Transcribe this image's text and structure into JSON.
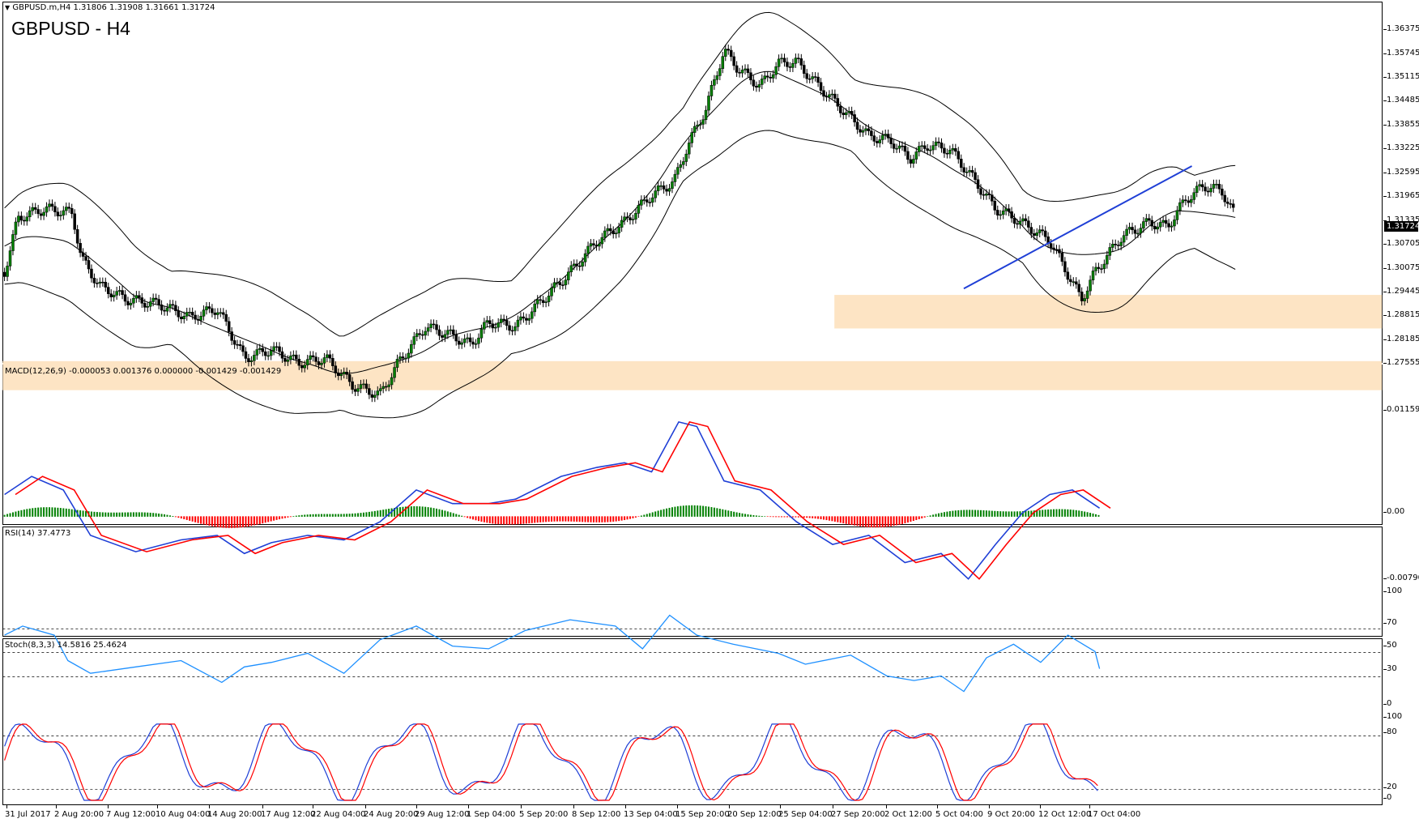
{
  "chart_header": {
    "symbol_info": "GBPUSD.m,H4  1.31806 1.31908 1.31661 1.31724",
    "title": "GBPUSD - H4",
    "current_price": "1.31724"
  },
  "indicators": {
    "macd_label": "MACD(12,26,9) -0.000053 0.001376 0.000000 -0.001429 -0.001429",
    "rsi_label": "RSI(14) 37.4773",
    "stoch_label": "Stoch(8,3,3) 14.5816 25.4624"
  },
  "price_axis": [
    "1.36375",
    "1.35745",
    "1.35115",
    "1.34485",
    "1.33855",
    "1.33225",
    "1.32595",
    "1.31965",
    "1.31335",
    "1.30705",
    "1.30075",
    "1.29445",
    "1.28815",
    "1.28185",
    "1.27555"
  ],
  "macd_axis": [
    "0.011594",
    "0.00",
    "-0.007909"
  ],
  "rsi_axis": [
    "100",
    "70",
    "50",
    "30",
    "0"
  ],
  "stoch_axis": [
    "100",
    "80",
    "20",
    "0"
  ],
  "time_axis": [
    "31 Jul 2017",
    "2 Aug 20:00",
    "7 Aug 12:00",
    "10 Aug 04:00",
    "14 Aug 20:00",
    "17 Aug 12:00",
    "22 Aug 04:00",
    "24 Aug 20:00",
    "29 Aug 12:00",
    "1 Sep 04:00",
    "5 Sep 20:00",
    "8 Sep 12:00",
    "13 Sep 04:00",
    "15 Sep 20:00",
    "20 Sep 12:00",
    "25 Sep 04:00",
    "27 Sep 20:00",
    "2 Oct 12:00",
    "5 Oct 04:00",
    "9 Oct 20:00",
    "12 Oct 12:00",
    "17 Oct 04:00"
  ],
  "colors": {
    "bull_candle": "#008000",
    "bear_candle": "#ff0000",
    "zone_fill": "#fde4c4",
    "trendline": "#1f3fd6",
    "macd_line": "#1f3fd6",
    "signal_line": "#ff0000",
    "rsi_line": "#1e90ff",
    "stoch_main": "#1f3fd6",
    "stoch_signal": "#ff0000"
  }
}
